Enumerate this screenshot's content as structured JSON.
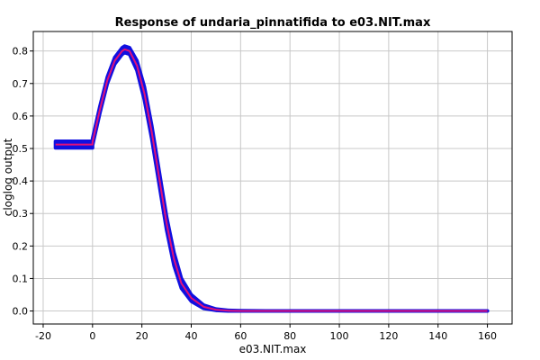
{
  "chart_data": {
    "type": "line",
    "title": "Response of undaria_pinnatifida to e03.NIT.max",
    "xlabel": "e03.NIT.max",
    "ylabel": "cloglog output",
    "xlim": [
      -24,
      170
    ],
    "ylim": [
      -0.04,
      0.86
    ],
    "grid": true,
    "x_ticks": [
      -20,
      0,
      20,
      40,
      60,
      80,
      100,
      120,
      140,
      160
    ],
    "y_ticks": [
      0.0,
      0.1,
      0.2,
      0.3,
      0.4,
      0.5,
      0.6,
      0.7,
      0.8
    ],
    "x_tick_labels": [
      "-20",
      "0",
      "20",
      "40",
      "60",
      "80",
      "100",
      "120",
      "140",
      "160"
    ],
    "y_tick_labels": [
      "0.0",
      "0.1",
      "0.2",
      "0.3",
      "0.4",
      "0.5",
      "0.6",
      "0.7",
      "0.8"
    ],
    "series": [
      {
        "color": "#1010e0",
        "role": "band",
        "x": [
          -15,
          0,
          0,
          3,
          6,
          9,
          12,
          13,
          15,
          18,
          21,
          24,
          27,
          30,
          33,
          36,
          40,
          45,
          50,
          55,
          60,
          70,
          160
        ],
        "upper": [
          0.522,
          0.522,
          0.53,
          0.63,
          0.72,
          0.78,
          0.81,
          0.815,
          0.81,
          0.77,
          0.69,
          0.57,
          0.43,
          0.29,
          0.18,
          0.1,
          0.05,
          0.018,
          0.006,
          0.002,
          0.001,
          0.0,
          0.0
        ],
        "lower": [
          0.502,
          0.502,
          0.51,
          0.61,
          0.7,
          0.76,
          0.79,
          0.795,
          0.79,
          0.74,
          0.65,
          0.53,
          0.39,
          0.25,
          0.14,
          0.07,
          0.03,
          0.008,
          0.002,
          0.0,
          0.0,
          0.0,
          0.0
        ]
      },
      {
        "color": "#e0107a",
        "role": "mean",
        "x": [
          -15,
          0,
          0,
          3,
          6,
          9,
          12,
          13,
          15,
          18,
          21,
          24,
          27,
          30,
          33,
          36,
          40,
          45,
          50,
          55,
          60,
          70,
          160
        ],
        "values": [
          0.512,
          0.512,
          0.52,
          0.62,
          0.71,
          0.77,
          0.8,
          0.805,
          0.8,
          0.755,
          0.67,
          0.55,
          0.41,
          0.27,
          0.16,
          0.085,
          0.04,
          0.013,
          0.004,
          0.001,
          0.0,
          0.0,
          0.0
        ]
      }
    ]
  }
}
